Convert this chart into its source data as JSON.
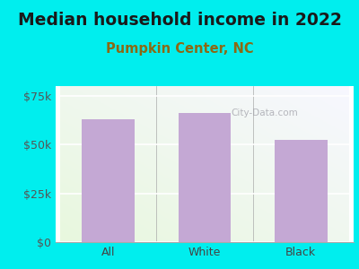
{
  "title": "Median household income in 2022",
  "subtitle": "Pumpkin Center, NC",
  "categories": [
    "All",
    "White",
    "Black"
  ],
  "values": [
    63000,
    66000,
    52500
  ],
  "bar_color": "#c4a8d4",
  "background_outer": "#00EEEE",
  "background_plot_tl": "#e8f5e0",
  "background_plot_br": "#f8f8ff",
  "title_color": "#1a1a1a",
  "subtitle_color": "#8B6914",
  "tick_label_color": "#555555",
  "ytick_labels": [
    "$0",
    "$25k",
    "$50k",
    "$75k"
  ],
  "ytick_values": [
    0,
    25000,
    50000,
    75000
  ],
  "ylim": [
    0,
    80000
  ],
  "watermark": "City-Data.com",
  "title_fontsize": 13.5,
  "subtitle_fontsize": 10.5,
  "tick_fontsize": 9,
  "xlabel_color": "#444444"
}
